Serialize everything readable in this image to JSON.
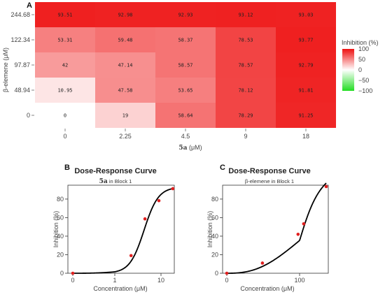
{
  "chart_data": [
    {
      "type": "heatmap",
      "panel": "A",
      "x_categories": [
        "0",
        "2.25",
        "4.5",
        "9",
        "18"
      ],
      "y_categories": [
        "244.68",
        "122.34",
        "97.87",
        "48.94",
        "0"
      ],
      "xlabel_main": "5a",
      "xlabel_unit": " (μM)",
      "ylabel": "β-elemene (μM)",
      "values": [
        [
          "93.51",
          "92.98",
          "92.93",
          "93.12",
          "93.03"
        ],
        [
          "53.31",
          "59.48",
          "58.37",
          "78.53",
          "93.77"
        ],
        [
          "42",
          "47.14",
          "58.57",
          "78.57",
          "92.79"
        ],
        [
          "10.95",
          "47.58",
          "53.65",
          "78.12",
          "91.81"
        ],
        [
          "0",
          "19",
          "58.64",
          "78.29",
          "91.25"
        ]
      ],
      "legend": {
        "title": "Inhibition (%)",
        "ticks": [
          "100",
          "50",
          "0",
          "−50",
          "−100"
        ],
        "range": [
          -100,
          100
        ],
        "colors": {
          "high": "#ee1111",
          "mid": "#ffffff",
          "low": "#22dd22"
        }
      }
    },
    {
      "type": "scatter",
      "panel": "B",
      "title": "Dose-Response Curve",
      "subtitle_bold": "5a",
      "subtitle_rest": " in Block 1",
      "xlabel": "Concentration (μM)",
      "ylabel": "Inhibition (%)",
      "x_ticks": [
        "0",
        "1",
        "10"
      ],
      "y_ticks": [
        "0",
        "20",
        "40",
        "60",
        "80"
      ],
      "ylim": [
        0,
        95
      ],
      "points": [
        {
          "x": 0,
          "y": 0
        },
        {
          "x": 2.25,
          "y": 19
        },
        {
          "x": 4.5,
          "y": 58.64
        },
        {
          "x": 9,
          "y": 78.29
        },
        {
          "x": 18,
          "y": 91.25
        }
      ],
      "colors": {
        "points": "#e02020",
        "curve": "#000000"
      }
    },
    {
      "type": "scatter",
      "panel": "C",
      "title": "Dose-Response Curve",
      "subtitle": "β-elemene in Block 1",
      "xlabel": "Concentration (μM)",
      "ylabel": "Inhibition (%)",
      "x_ticks": [
        "0",
        "100"
      ],
      "y_ticks": [
        "0",
        "20",
        "40",
        "60",
        "80"
      ],
      "ylim": [
        0,
        95
      ],
      "points": [
        {
          "x": 0,
          "y": 0
        },
        {
          "x": 48.94,
          "y": 10.95
        },
        {
          "x": 97.87,
          "y": 42
        },
        {
          "x": 122.34,
          "y": 53.31
        },
        {
          "x": 244.68,
          "y": 93.51
        }
      ],
      "colors": {
        "points": "#e02020",
        "curve": "#000000"
      }
    }
  ]
}
